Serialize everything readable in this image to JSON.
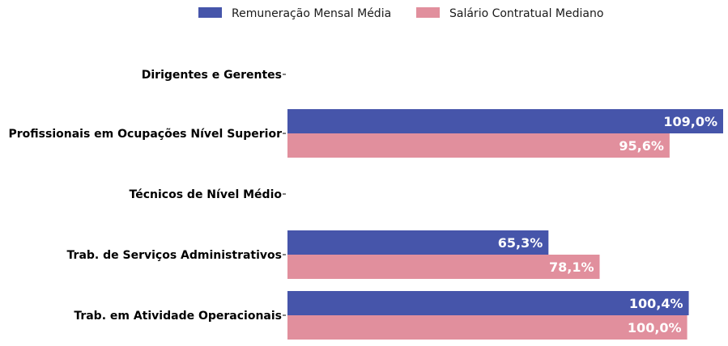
{
  "chart_data": {
    "type": "bar",
    "orientation": "horizontal",
    "categories": [
      "Dirigentes e Gerentes",
      "Profissionais em Ocupações Nível Superior",
      "Técnicos de Nível Médio",
      "Trab. de Serviços Administrativos",
      "Trab. em Atividade Operacionais"
    ],
    "series": [
      {
        "name": "Remuneração Mensal Média",
        "color": "#4655aa",
        "values": [
          null,
          109.0,
          null,
          65.3,
          100.4
        ],
        "labels": [
          "",
          "109,0%",
          "",
          "65,3%",
          "100,4%"
        ]
      },
      {
        "name": "Salário Contratual Mediano",
        "color": "#e18f9d",
        "values": [
          null,
          95.6,
          null,
          78.1,
          100.0
        ],
        "labels": [
          "",
          "95,6%",
          "",
          "78,1%",
          "100,0%"
        ]
      }
    ],
    "xlim": [
      0,
      109.0
    ],
    "grid": false,
    "legend": "top-center",
    "title": "",
    "xlabel": "",
    "ylabel": ""
  }
}
